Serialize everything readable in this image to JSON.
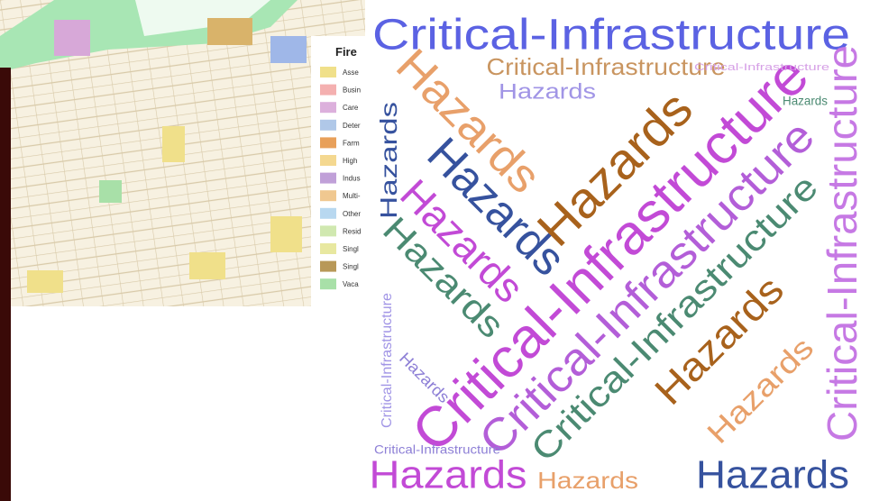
{
  "map": {
    "legend_title": "Fire",
    "legend_items": [
      "Asse",
      "Busin",
      "Care",
      "Deter",
      "Farm",
      "High",
      "Indus",
      "Multi-",
      "Other",
      "Resid",
      "Singl",
      "Singl",
      "Vaca"
    ]
  },
  "word_cloud": {
    "words": [
      "Critical-Infrastructure",
      "Critical-Infrastructure",
      "Hazards",
      "Hazards",
      "Hazards",
      "Hazards",
      "Critical-Infrastructure",
      "Critical-Infrastructure",
      "Critical-Infrastructure",
      "Critical-Infrastructure",
      "Hazards",
      "Hazards",
      "Hazards",
      "Hazards",
      "Hazards",
      "Hazards",
      "Hazards",
      "Hazards",
      "Critical-Infrastructure",
      "Critical-Infrastructure",
      "Hazards",
      "Hazards",
      "Critical-Infrastructure"
    ]
  }
}
